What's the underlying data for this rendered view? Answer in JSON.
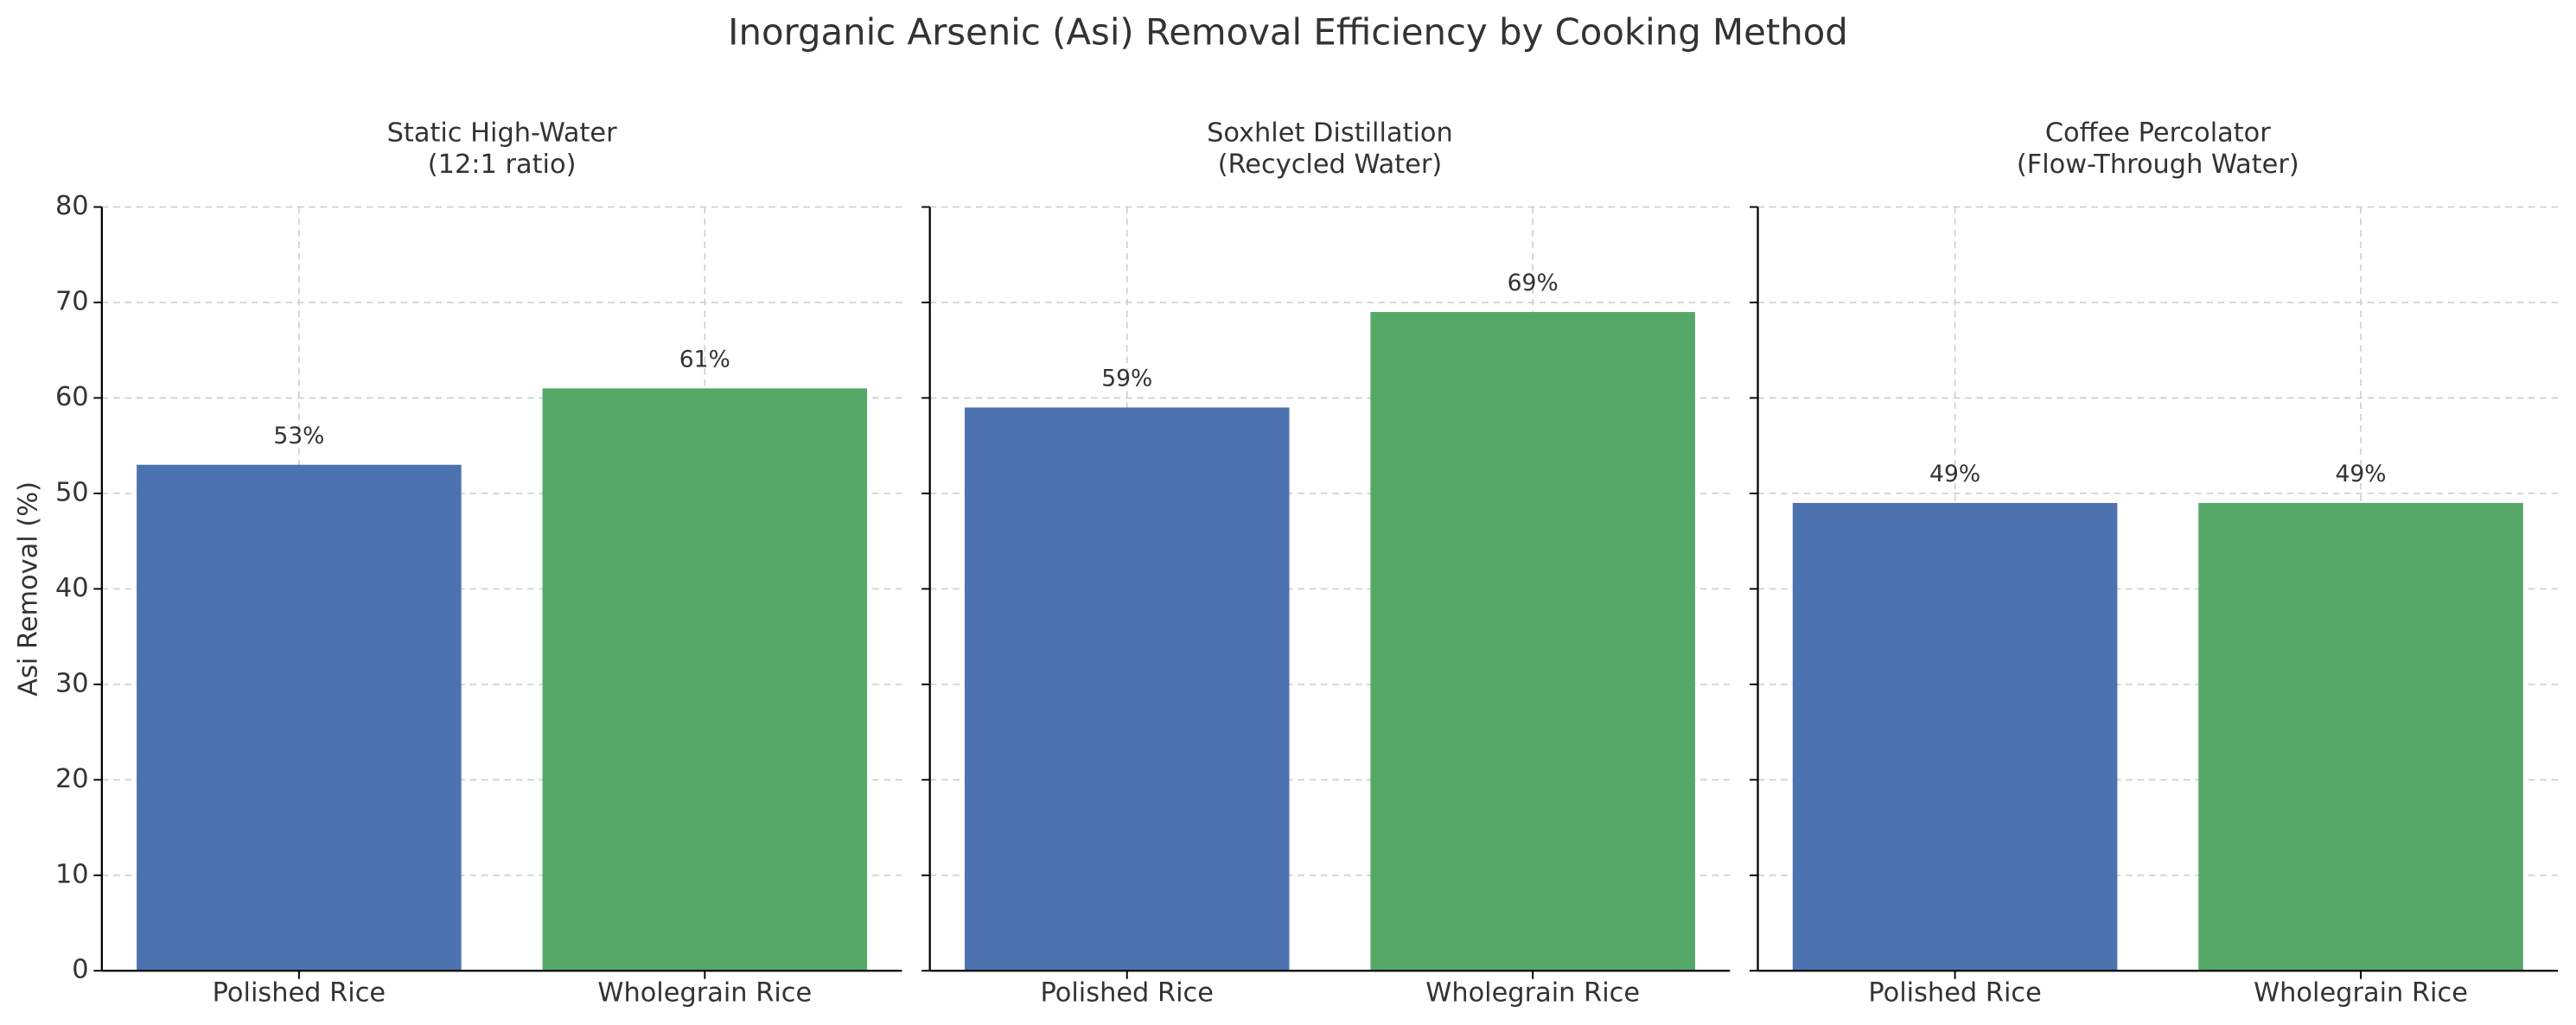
{
  "title": "Inorganic Arsenic (Asi) Removal Efficiency by Cooking Method",
  "chart_data": [
    {
      "type": "bar",
      "title": "Static High-Water\n(12:1 ratio)",
      "ylabel": "Asi Removal (%)",
      "categories": [
        "Polished Rice",
        "Wholegrain Rice"
      ],
      "values": [
        53,
        61
      ],
      "value_labels": [
        "53%",
        "61%"
      ],
      "colors": [
        "#4c72b0",
        "#55a868"
      ],
      "ylim": [
        0,
        80
      ],
      "yticks": [
        0,
        10,
        20,
        30,
        40,
        50,
        60,
        70,
        80
      ],
      "grid": true
    },
    {
      "type": "bar",
      "title": "Soxhlet Distillation\n(Recycled Water)",
      "categories": [
        "Polished Rice",
        "Wholegrain Rice"
      ],
      "values": [
        59,
        69
      ],
      "value_labels": [
        "59%",
        "69%"
      ],
      "colors": [
        "#4c72b0",
        "#55a868"
      ],
      "sharey": true,
      "grid": true
    },
    {
      "type": "bar",
      "title": "Coffee Percolator\n(Flow-Through Water)",
      "categories": [
        "Polished Rice",
        "Wholegrain Rice"
      ],
      "values": [
        49,
        49
      ],
      "value_labels": [
        "49%",
        "49%"
      ],
      "colors": [
        "#4c72b0",
        "#55a868"
      ],
      "sharey": true,
      "grid": true
    }
  ]
}
